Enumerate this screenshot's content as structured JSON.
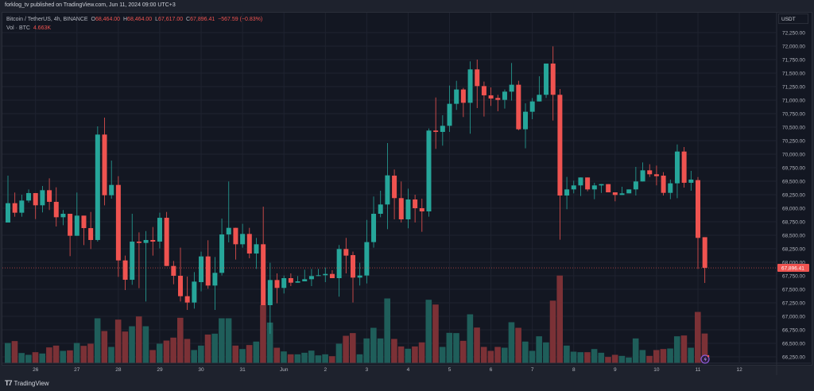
{
  "publish_line": "forklog_tv published on TradingView.com, Jun 11, 2024 09:00 UTC+3",
  "legend": {
    "symbol": "Bitcoin / TetherUS, 4h, BINANCE",
    "o_label": "O",
    "o": "68,464.00",
    "h_label": "H",
    "h": "68,464.00",
    "l_label": "L",
    "l": "67,617.00",
    "c_label": "C",
    "c": "67,896.41",
    "change": "−567.59 (−0.83%)",
    "vol_label": "Vol · BTC",
    "vol": "4.663K"
  },
  "currency": "USDT",
  "footer": {
    "brand": "TradingView"
  },
  "colors": {
    "up": "#26a69a",
    "down": "#ef5350",
    "up_vol": "#1f5e5a",
    "down_vol": "#7b3136",
    "bg": "#131722",
    "grid": "#1f2330"
  },
  "chart_data": {
    "type": "candlestick",
    "title": "Bitcoin / TetherUS, 4h, BINANCE",
    "ylim": [
      66150,
      72400
    ],
    "y_ticks": [
      "72,250.00",
      "72,000.00",
      "71,750.00",
      "71,500.00",
      "71,250.00",
      "71,000.00",
      "70,750.00",
      "70,500.00",
      "70,250.00",
      "70,000.00",
      "69,750.00",
      "69,500.00",
      "69,250.00",
      "69,000.00",
      "68,750.00",
      "68,500.00",
      "68,250.00",
      "68,000.00",
      "67,750.00",
      "67,500.00",
      "67,250.00",
      "67,000.00",
      "66,750.00",
      "66,500.00",
      "66,250.00"
    ],
    "x_ticks": [
      "26",
      "27",
      "28",
      "29",
      "30",
      "31",
      "Jun",
      "2",
      "3",
      "4",
      "5",
      "6",
      "7",
      "8",
      "9",
      "10",
      "11",
      "12"
    ],
    "first_tick_candle_index": 4,
    "candles_per_day": 6,
    "last_price": 67896.41,
    "last_price_label": "67,896.41",
    "volume_unit": "K BTC",
    "candles_ohlcv": [
      [
        68735,
        69603,
        68735,
        69093,
        3.16
      ],
      [
        69093,
        69290,
        68843,
        68917,
        3.46
      ],
      [
        68917,
        69250,
        68843,
        69142,
        1.56
      ],
      [
        69142,
        69348,
        69103,
        69280,
        1.27
      ],
      [
        69280,
        69280,
        68799,
        69054,
        1.69
      ],
      [
        69054,
        69412,
        68922,
        69333,
        1.48
      ],
      [
        69333,
        69554,
        68966,
        69118,
        2.45
      ],
      [
        69118,
        69387,
        68662,
        68833,
        2.74
      ],
      [
        68833,
        68966,
        68686,
        68897,
        1.9
      ],
      [
        68897,
        68897,
        68113,
        68490,
        1.98
      ],
      [
        68490,
        69290,
        68490,
        68863,
        3.16
      ],
      [
        68863,
        68863,
        68318,
        68632,
        2.7
      ],
      [
        68632,
        68931,
        68245,
        68412,
        3.04
      ],
      [
        68412,
        70515,
        68382,
        70363,
        7.09
      ],
      [
        70363,
        70676,
        69054,
        69240,
        5.06
      ],
      [
        69240,
        69882,
        69176,
        69431,
        2.53
      ],
      [
        69431,
        69593,
        67730,
        68034,
        6.88
      ],
      [
        68034,
        68123,
        67485,
        67676,
        4.98
      ],
      [
        67676,
        68897,
        67583,
        68382,
        5.82
      ],
      [
        68382,
        68554,
        67520,
        68358,
        7.38
      ],
      [
        68358,
        68578,
        67274,
        68412,
        5.82
      ],
      [
        68412,
        68652,
        68123,
        68382,
        2.03
      ],
      [
        68382,
        68917,
        68255,
        68823,
        3.04
      ],
      [
        68823,
        68931,
        67931,
        67931,
        3.54
      ],
      [
        67931,
        68024,
        67593,
        67750,
        4.01
      ],
      [
        67750,
        68270,
        67274,
        67372,
        7.17
      ],
      [
        67372,
        67735,
        67118,
        67255,
        3.8
      ],
      [
        67255,
        67818,
        67142,
        67642,
        2.03
      ],
      [
        67632,
        68196,
        67461,
        68108,
        2.74
      ],
      [
        68108,
        68407,
        67510,
        67569,
        4.5
      ],
      [
        67569,
        68098,
        67118,
        67804,
        4.64
      ],
      [
        67804,
        68809,
        67755,
        68515,
        7.09
      ],
      [
        68515,
        69495,
        68368,
        68637,
        7.09
      ],
      [
        68637,
        68637,
        68049,
        68333,
        2.74
      ],
      [
        68333,
        68711,
        68270,
        68524,
        2.19
      ],
      [
        68524,
        68637,
        68074,
        68162,
        2.83
      ],
      [
        68162,
        68451,
        67877,
        68333,
        3.38
      ],
      [
        68333,
        69029,
        67206,
        67206,
        9.2
      ],
      [
        67206,
        67990,
        66676,
        67671,
        6.41
      ],
      [
        67671,
        67794,
        67240,
        67525,
        2.4
      ],
      [
        67525,
        67755,
        67422,
        67706,
        1.81
      ],
      [
        67706,
        67794,
        67559,
        67622,
        1.35
      ],
      [
        67622,
        67745,
        67622,
        67647,
        1.35
      ],
      [
        67647,
        67863,
        67647,
        67686,
        1.6
      ],
      [
        67686,
        67877,
        67559,
        67745,
        1.94
      ],
      [
        67745,
        67877,
        67745,
        67760,
        1.18
      ],
      [
        67760,
        67902,
        67632,
        67784,
        1.35
      ],
      [
        67784,
        67853,
        67706,
        67706,
        1.05
      ],
      [
        67706,
        68319,
        67363,
        68245,
        3.04
      ],
      [
        68245,
        68451,
        67794,
        68123,
        4.3
      ],
      [
        68132,
        68196,
        67255,
        67716,
        4.73
      ],
      [
        67716,
        67990,
        67569,
        67755,
        1.35
      ],
      [
        67755,
        68784,
        67608,
        68373,
        3.88
      ],
      [
        68373,
        69216,
        68270,
        68897,
        5.57
      ],
      [
        68897,
        69324,
        68833,
        69069,
        3.88
      ],
      [
        69069,
        70206,
        68613,
        69608,
        10.25
      ],
      [
        69603,
        69716,
        68794,
        69187,
        3.8
      ],
      [
        69187,
        69495,
        68736,
        68794,
        2.6
      ],
      [
        68794,
        69363,
        68628,
        69162,
        2.24
      ],
      [
        69162,
        69250,
        68736,
        69000,
        2.6
      ],
      [
        69000,
        69177,
        68564,
        68941,
        3.25
      ],
      [
        68941,
        70476,
        68843,
        70437,
        10.04
      ],
      [
        70437,
        71049,
        70098,
        70412,
        9.28
      ],
      [
        70412,
        70721,
        70157,
        70525,
        2.53
      ],
      [
        70525,
        71270,
        70412,
        70932,
        4.77
      ],
      [
        70932,
        71358,
        70819,
        71197,
        4.73
      ],
      [
        71197,
        71226,
        70687,
        70951,
        3.5
      ],
      [
        70951,
        71716,
        70378,
        71569,
        7.72
      ],
      [
        71569,
        71750,
        70853,
        71260,
        5.61
      ],
      [
        71260,
        71343,
        70696,
        71089,
        2.53
      ],
      [
        71089,
        71236,
        70893,
        71030,
        1.9
      ],
      [
        71040,
        71098,
        70795,
        71005,
        2.53
      ],
      [
        71005,
        71196,
        70844,
        71157,
        2.4
      ],
      [
        71157,
        71687,
        70991,
        71285,
        6.46
      ],
      [
        71285,
        71358,
        70442,
        70461,
        5.57
      ],
      [
        70461,
        70942,
        70108,
        70785,
        3.38
      ],
      [
        70785,
        71040,
        70647,
        70976,
        1.9
      ],
      [
        70976,
        71442,
        70976,
        71099,
        4.22
      ],
      [
        71099,
        71677,
        71040,
        71677,
        3.25
      ],
      [
        71677,
        71995,
        70623,
        71099,
        9.9
      ],
      [
        71099,
        71206,
        68417,
        69235,
        13.9
      ],
      [
        69235,
        69579,
        68981,
        69348,
        2.74
      ],
      [
        69348,
        69510,
        69275,
        69422,
        1.77
      ],
      [
        69422,
        69569,
        69226,
        69569,
        1.69
      ],
      [
        69569,
        69569,
        69314,
        69348,
        1.69
      ],
      [
        69348,
        69471,
        69167,
        69422,
        2.19
      ],
      [
        69422,
        69446,
        69284,
        69446,
        1.6
      ],
      [
        69446,
        69446,
        69294,
        69294,
        0.93
      ],
      [
        69294,
        69294,
        69128,
        69245,
        1.27
      ],
      [
        69245,
        69397,
        69245,
        69275,
        1.1
      ],
      [
        69275,
        69348,
        69275,
        69348,
        0.84
      ],
      [
        69348,
        69765,
        69235,
        69495,
        3.88
      ],
      [
        69495,
        69848,
        69495,
        69701,
        2.03
      ],
      [
        69701,
        69814,
        69578,
        69628,
        1.1
      ],
      [
        69628,
        69789,
        69422,
        69593,
        2.03
      ],
      [
        69603,
        69667,
        69235,
        69284,
        2.19
      ],
      [
        69284,
        69530,
        69167,
        69461,
        2.28
      ],
      [
        69461,
        70181,
        69186,
        70049,
        4.22
      ],
      [
        70049,
        70132,
        69382,
        69471,
        4.35
      ],
      [
        69471,
        69691,
        69324,
        69530,
        2.4
      ],
      [
        69520,
        69578,
        67877,
        68451,
        8.1
      ],
      [
        68464,
        68464,
        67617,
        67896.41,
        4.663
      ]
    ]
  }
}
